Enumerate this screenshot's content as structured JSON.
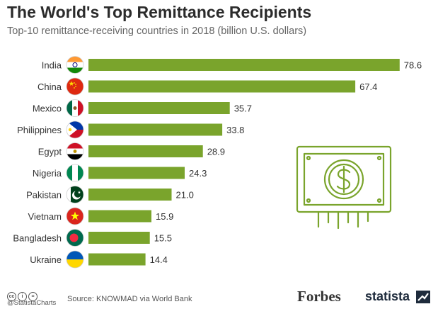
{
  "chart_data": {
    "type": "bar",
    "orientation": "horizontal",
    "title": "The World's Top Remittance Recipients",
    "subtitle": "Top-10 remittance-receiving countries in 2018 (billion U.S. dollars)",
    "categories": [
      "India",
      "China",
      "Mexico",
      "Philippines",
      "Egypt",
      "Nigeria",
      "Pakistan",
      "Vietnam",
      "Bangladesh",
      "Ukraine"
    ],
    "values": [
      78.6,
      67.4,
      35.7,
      33.8,
      28.9,
      24.3,
      21.0,
      15.9,
      15.5,
      14.4
    ],
    "value_labels": [
      "78.6",
      "67.4",
      "35.7",
      "33.8",
      "28.9",
      "24.3",
      "21.0",
      "15.9",
      "15.5",
      "14.4"
    ],
    "bar_color": "#7aa42c",
    "grid": false,
    "legend": "none",
    "xlim": [
      0,
      80
    ]
  },
  "flags": [
    "india-flag",
    "china-flag",
    "mexico-flag",
    "philippines-flag",
    "egypt-flag",
    "nigeria-flag",
    "pakistan-flag",
    "vietnam-flag",
    "bangladesh-flag",
    "ukraine-flag"
  ],
  "decoration": {
    "icon": "dollar-bill-icon",
    "color": "#7aa42c"
  },
  "footer": {
    "handle": "@StatistaCharts",
    "source": "Source: KNOWMAD via World Bank",
    "brand_forbes": "Forbes",
    "brand_statista": "statista",
    "license_icons": [
      "cc-icon",
      "by-icon",
      "nd-icon"
    ]
  }
}
